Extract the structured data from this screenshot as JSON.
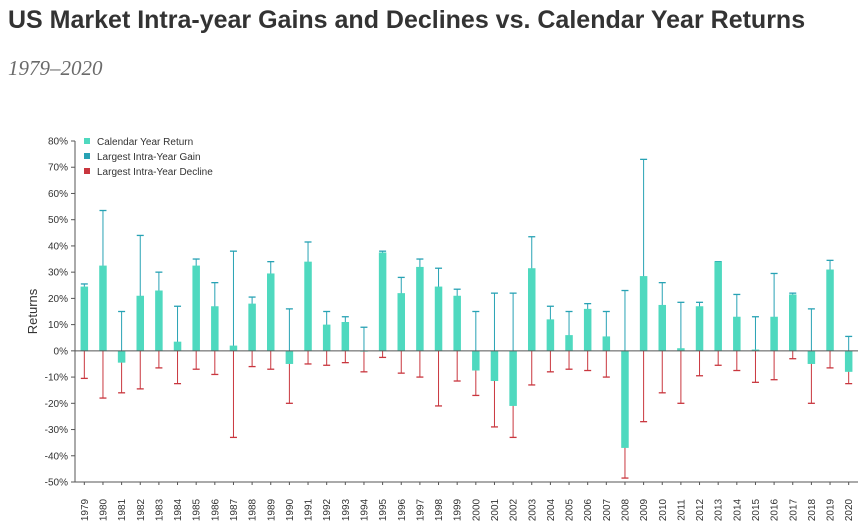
{
  "header": {
    "title": "US Market Intra-year Gains and Declines vs. Calendar Year Returns",
    "subtitle": "1979–2020"
  },
  "colors": {
    "calendar": "#4fd9bf",
    "gain": "#27a2b4",
    "decline": "#c9363e",
    "axis": "#555555",
    "text": "#333333"
  },
  "chart_data": {
    "type": "bar",
    "ylabel": "Returns",
    "xlabel": "",
    "ylim": [
      -50,
      80
    ],
    "yticks": [
      80,
      70,
      60,
      50,
      40,
      30,
      20,
      10,
      0,
      -10,
      -20,
      -30,
      -40,
      -50
    ],
    "ytick_suffix": "%",
    "grid": false,
    "legend_position": "top-left",
    "categories": [
      "1979",
      "1980",
      "1981",
      "1982",
      "1983",
      "1984",
      "1985",
      "1986",
      "1987",
      "1988",
      "1989",
      "1990",
      "1991",
      "1992",
      "1993",
      "1994",
      "1995",
      "1996",
      "1997",
      "1998",
      "1999",
      "2000",
      "2001",
      "2002",
      "2003",
      "2004",
      "2005",
      "2006",
      "2007",
      "2008",
      "2009",
      "2010",
      "2011",
      "2012",
      "2013",
      "2014",
      "2015",
      "2016",
      "2017",
      "2018",
      "2019",
      "2020"
    ],
    "series": [
      {
        "name": "Calendar Year Return",
        "values": [
          24.5,
          32.5,
          -4.5,
          21,
          23,
          3.5,
          32.5,
          17,
          2,
          18,
          29.5,
          -5,
          34,
          10,
          11,
          0,
          37.5,
          22,
          32,
          24.5,
          21,
          -7.5,
          -11.5,
          -21,
          31.5,
          12,
          6,
          16,
          5.5,
          -37,
          28.5,
          17.5,
          1,
          17,
          34,
          13,
          0.5,
          13,
          21.5,
          -5,
          31,
          -8
        ]
      },
      {
        "name": "Largest Intra-Year Gain",
        "values": [
          25.5,
          53.5,
          15,
          44,
          30,
          17,
          35,
          26,
          38,
          20.5,
          34,
          16,
          41.5,
          15,
          13,
          9,
          38,
          28,
          35,
          31.5,
          23.5,
          15,
          22,
          22,
          43.5,
          17,
          15,
          18,
          15,
          23,
          73,
          26,
          18.5,
          18.5,
          34,
          21.5,
          13,
          29.5,
          22,
          16,
          34.5,
          5.5
        ]
      },
      {
        "name": "Largest Intra-Year Decline",
        "values": [
          -10.5,
          -18,
          -16,
          -14.5,
          -6.5,
          -12.5,
          -7,
          -9,
          -33,
          -6,
          -7,
          -20,
          -5,
          -5.5,
          -4.5,
          -8,
          -2.5,
          -8.5,
          -10,
          -21,
          -11.5,
          -17,
          -29,
          -33,
          -13,
          -8,
          -7,
          -7.5,
          -10,
          -48.5,
          -27,
          -16,
          -20,
          -9.5,
          -5.5,
          -7.5,
          -12,
          -11,
          -3,
          -20,
          -6.5,
          -12.5
        ]
      }
    ]
  }
}
